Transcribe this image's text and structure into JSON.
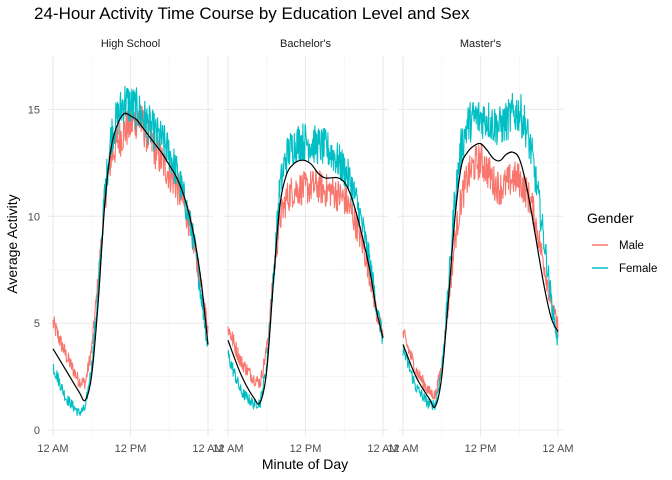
{
  "chart_data": {
    "type": "line",
    "title": "24-Hour Activity Time Course by Education Level and Sex",
    "xlabel": "Minute of Day",
    "ylabel": "Average Activity",
    "xlim": [
      0,
      1440
    ],
    "ylim": [
      0,
      17.5
    ],
    "x_ticks": [
      {
        "value": 0,
        "label": "12 AM"
      },
      {
        "value": 720,
        "label": "12 PM"
      },
      {
        "value": 1440,
        "label": "12 AM"
      }
    ],
    "y_ticks": [
      0,
      5,
      10,
      15
    ],
    "legend": {
      "title": "Gender",
      "position": "right",
      "entries": [
        {
          "label": "Male",
          "color": "#F8766D"
        },
        {
          "label": "Female",
          "color": "#00BFC4"
        }
      ]
    },
    "smooth_color": "#000000",
    "panels": [
      {
        "label": "High School",
        "x": [
          0,
          120,
          240,
          300,
          360,
          420,
          480,
          540,
          600,
          660,
          720,
          780,
          840,
          900,
          960,
          1020,
          1080,
          1140,
          1200,
          1260,
          1320,
          1380,
          1440
        ],
        "series": [
          {
            "name": "Male",
            "values": [
              5.0,
              3.5,
              2.3,
              2.2,
              3.8,
              7.0,
              10.8,
              12.8,
              13.5,
              14.0,
              14.3,
              14.6,
              14.2,
              13.6,
              13.0,
              12.5,
              12.0,
              11.5,
              10.8,
              9.8,
              8.5,
              6.5,
              4.8
            ]
          },
          {
            "name": "Female",
            "values": [
              3.0,
              1.5,
              0.8,
              1.0,
              3.0,
              6.5,
              11.0,
              13.8,
              14.6,
              15.4,
              15.2,
              15.0,
              14.6,
              14.2,
              13.8,
              13.5,
              13.0,
              12.2,
              11.2,
              10.0,
              8.5,
              6.2,
              3.8
            ]
          }
        ],
        "smooth": [
          3.8,
          2.8,
          1.8,
          1.4,
          2.6,
          6.0,
          10.5,
          13.2,
          14.3,
          14.8,
          14.7,
          14.5,
          14.1,
          13.7,
          13.3,
          12.9,
          12.4,
          11.9,
          11.2,
          10.2,
          8.8,
          6.8,
          4.0
        ]
      },
      {
        "label": "Bachelor's",
        "x": [
          0,
          120,
          240,
          300,
          360,
          420,
          480,
          540,
          600,
          660,
          720,
          780,
          840,
          900,
          960,
          1020,
          1080,
          1140,
          1200,
          1260,
          1320,
          1380,
          1440
        ],
        "series": [
          {
            "name": "Male",
            "values": [
              4.8,
              3.2,
              2.4,
              2.2,
              3.8,
              7.0,
              9.8,
              10.8,
              11.2,
              11.3,
              11.3,
              11.4,
              11.4,
              11.2,
              11.2,
              11.0,
              10.8,
              10.3,
              9.5,
              8.5,
              7.2,
              5.5,
              4.4
            ]
          },
          {
            "name": "Female",
            "values": [
              3.5,
              1.8,
              1.2,
              1.3,
              3.0,
              7.0,
              11.3,
              12.8,
              13.3,
              13.5,
              13.5,
              13.4,
              13.3,
              13.2,
              13.0,
              12.6,
              12.2,
              11.6,
              10.6,
              9.3,
              7.8,
              5.8,
              4.2
            ]
          }
        ],
        "smooth": [
          4.2,
          2.6,
          1.5,
          1.3,
          2.8,
          6.8,
          10.4,
          11.9,
          12.4,
          12.6,
          12.6,
          12.4,
          12.0,
          11.8,
          11.8,
          11.8,
          11.6,
          11.0,
          10.0,
          8.8,
          7.4,
          5.6,
          4.3
        ]
      },
      {
        "label": "Master's",
        "x": [
          0,
          120,
          240,
          300,
          360,
          420,
          480,
          540,
          600,
          660,
          720,
          780,
          840,
          900,
          960,
          1020,
          1080,
          1140,
          1200,
          1260,
          1320,
          1380,
          1440
        ],
        "series": [
          {
            "name": "Male",
            "values": [
              4.5,
              2.8,
              1.8,
              1.6,
              3.0,
              5.8,
              8.8,
              10.8,
              11.8,
              12.4,
              12.6,
              12.2,
              11.6,
              11.3,
              11.5,
              11.8,
              11.7,
              11.2,
              10.5,
              9.0,
              7.5,
              5.8,
              4.8
            ]
          },
          {
            "name": "Female",
            "values": [
              3.8,
              2.0,
              1.2,
              1.2,
              2.8,
              6.5,
              10.8,
              13.2,
              14.3,
              14.6,
              14.6,
              14.6,
              14.3,
              14.2,
              14.4,
              14.8,
              14.9,
              14.2,
              12.8,
              10.8,
              8.5,
              6.0,
              4.0
            ]
          }
        ],
        "smooth": [
          4.0,
          2.5,
          1.5,
          1.1,
          2.5,
          6.0,
          9.8,
          12.3,
          13.0,
          13.3,
          13.4,
          13.1,
          12.7,
          12.6,
          12.9,
          13.0,
          12.7,
          11.6,
          10.0,
          8.2,
          6.5,
          5.2,
          4.6
        ]
      }
    ]
  }
}
